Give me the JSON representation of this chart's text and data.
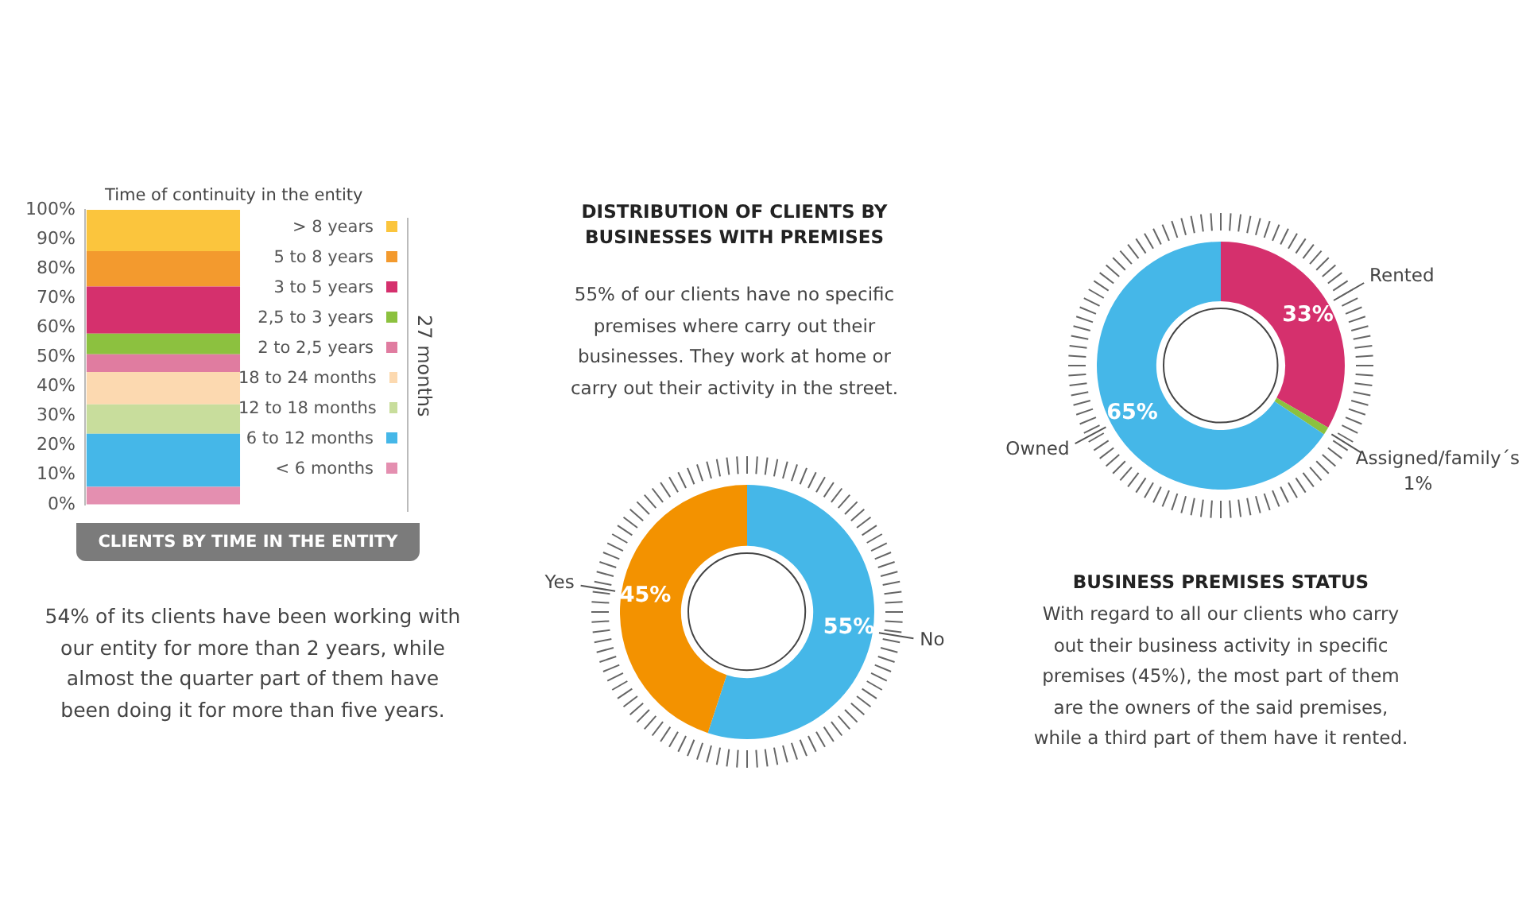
{
  "chart_data": [
    {
      "type": "bar",
      "stacked": true,
      "title": "CLIENTS BY TIME IN THE ENTITY",
      "subtitle": "Time of continuity in the entity",
      "categories": [
        null
      ],
      "series": [
        {
          "name": "< 6 months",
          "color": "#e48fb0",
          "values": [
            6
          ]
        },
        {
          "name": "6 to 12 months",
          "color": "#45b7e8",
          "values": [
            18
          ]
        },
        {
          "name": "12 to 18 months",
          "color": "#c8dd9c",
          "values": [
            10
          ]
        },
        {
          "name": "18 to 24 months",
          "color": "#fcd9b0",
          "values": [
            11
          ]
        },
        {
          "name": "2 to 2,5 years",
          "color": "#e07ca0",
          "values": [
            6
          ]
        },
        {
          "name": "2,5 to 3 years",
          "color": "#8cc13f",
          "values": [
            7
          ]
        },
        {
          "name": "3 to 5 years",
          "color": "#d5306d",
          "values": [
            16
          ]
        },
        {
          "name": "5 to 8 years",
          "color": "#f39a2e",
          "values": [
            12
          ]
        },
        {
          "name": "> 8 years",
          "color": "#fbc53d",
          "values": [
            14
          ]
        }
      ],
      "ylim": [
        0,
        100
      ],
      "yticks": [
        {
          "value": 0,
          "label": "0%"
        },
        {
          "value": 10,
          "label": "10%"
        },
        {
          "value": 20,
          "label": "20%"
        },
        {
          "value": 30,
          "label": "30%"
        },
        {
          "value": 40,
          "label": "40%"
        },
        {
          "value": 50,
          "label": "50%"
        },
        {
          "value": 60,
          "label": "60%"
        },
        {
          "value": 70,
          "label": "70%"
        },
        {
          "value": 80,
          "label": "80%"
        },
        {
          "value": 90,
          "label": "90%"
        },
        {
          "value": 100,
          "label": "100%"
        }
      ],
      "grid": false,
      "legend": "right",
      "tick_labels": "y",
      "annotations": [
        "27 months",
        "54% of its clients have been working with our entity for more than 2 years, while almost the quarter part of them have been doing it for more than five years."
      ]
    },
    {
      "type": "donut",
      "title": "DISTRIBUTION OF CLIENTS BY BUSINESSES WITH PREMISES",
      "subtitle": "55% of our clients have no specific premises where carry out their businesses. They work at home or carry out their activity in the street.",
      "categories": [
        "No",
        "Yes"
      ],
      "values": [
        55,
        45
      ],
      "colors": [
        "#45b7e8",
        "#f39200"
      ],
      "value_labels": [
        "55%",
        "45%"
      ]
    },
    {
      "type": "donut",
      "title": "BUSINESS PREMISES STATUS",
      "subtitle": "With regard to all our clients who carry out their business activity in specific premises (45%), the most part of them are the owners of the said premises, while a third part of them have it rented.",
      "categories": [
        "Rented",
        "Assigned/family´s",
        "Owned"
      ],
      "values": [
        33,
        1,
        65
      ],
      "colors": [
        "#d5306d",
        "#8cc13f",
        "#45b7e8"
      ],
      "value_labels": [
        "33%",
        "1%",
        "65%"
      ]
    }
  ]
}
